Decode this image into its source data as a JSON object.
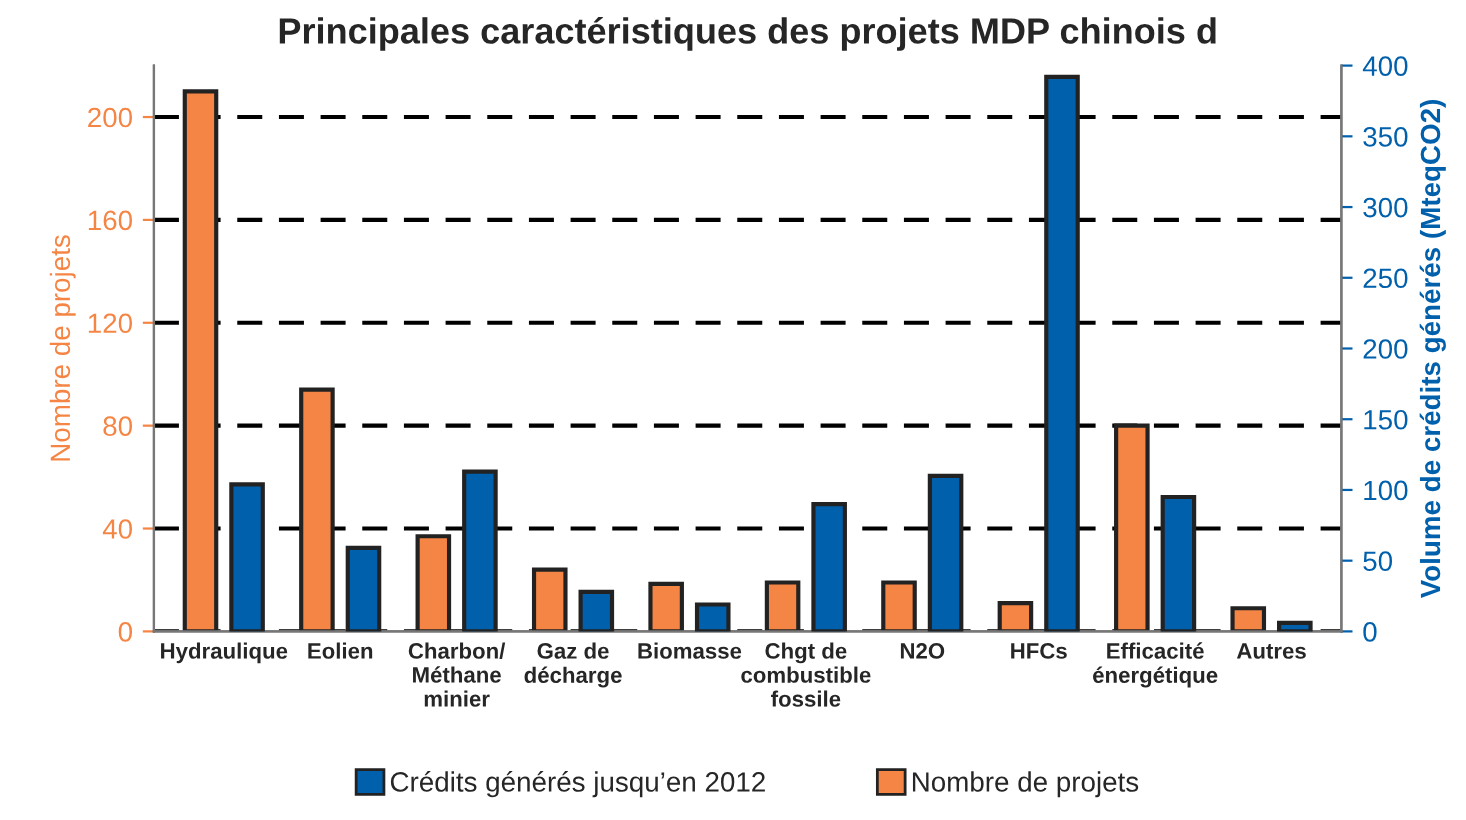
{
  "chart_data": {
    "type": "bar",
    "title": "Principales caractéristiques des projets MDP chinois d",
    "ylabel": "Nombre de projets",
    "y2label": "Volume de crédits générés (MteqCO2)",
    "categories": [
      "Hydraulique",
      "Eolien",
      "Charbon/\nMéthane\nminier",
      "Gaz de\ndécharge",
      "Biomasse",
      "Chgt de\ncombustible\nfossile",
      "N2O",
      "HFCs",
      "Efficacité\nénergétique",
      "Autres"
    ],
    "series": [
      {
        "name": "Nombre de projets",
        "color": "#f58544",
        "values": [
          210,
          94,
          37,
          24,
          18.5,
          19,
          19,
          11,
          80,
          9
        ]
      },
      {
        "name": "Crédits générés jusqu’en 2012",
        "color": "#0060ac",
        "axis": "y2",
        "values": [
          104,
          59,
          113,
          28,
          19,
          90,
          110,
          392,
          95,
          6
        ]
      }
    ],
    "ylim": [
      0,
      220
    ],
    "yticks": [
      0,
      40,
      80,
      120,
      160,
      200
    ],
    "y2lim": [
      0,
      400
    ],
    "y2ticks": [
      0,
      50,
      100,
      150,
      200,
      250,
      300,
      350,
      400
    ],
    "grid": "y",
    "line_style": "dashed",
    "legend": "bottom"
  }
}
